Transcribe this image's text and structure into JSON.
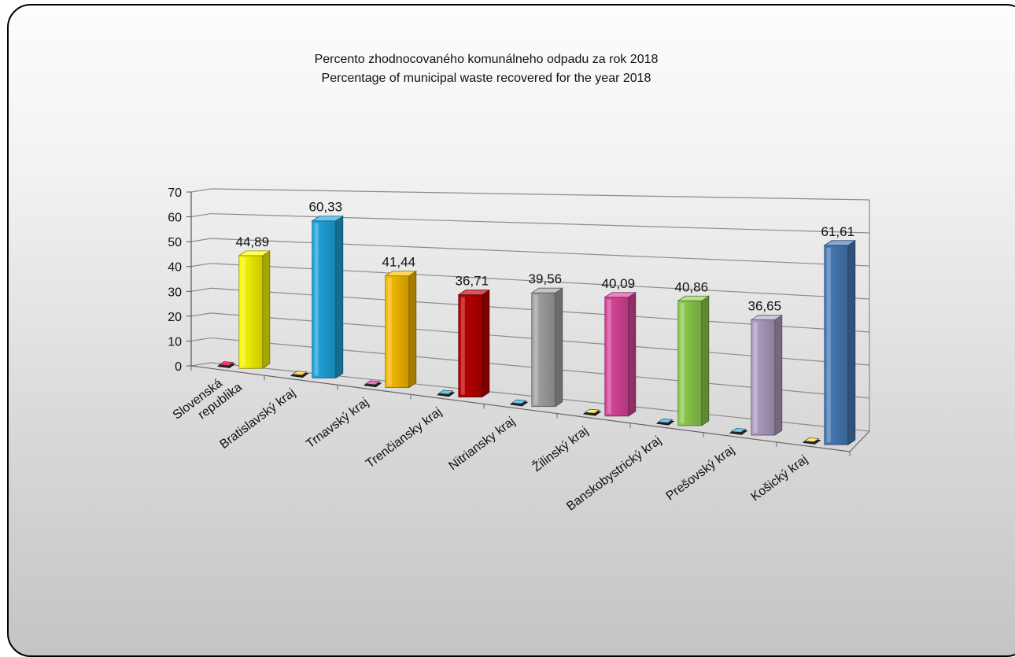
{
  "chart_data": {
    "type": "bar",
    "title_lines": [
      "Percento zhodnocovaného komunálneho odpadu za rok 2018",
      "Percentage of municipal waste recovered for the year 2018"
    ],
    "y_ticks": [
      "0",
      "10",
      "20",
      "30",
      "40",
      "50",
      "60",
      "70"
    ],
    "ylim": [
      0,
      70
    ],
    "categories": [
      {
        "lines": [
          "Slovenská",
          "republika"
        ]
      },
      {
        "lines": [
          "Bratislavský kraj"
        ]
      },
      {
        "lines": [
          "Trnavský kraj"
        ]
      },
      {
        "lines": [
          "Trenčiansky kraj"
        ]
      },
      {
        "lines": [
          "Nitriansky kraj"
        ]
      },
      {
        "lines": [
          "Žilinský kraj"
        ]
      },
      {
        "lines": [
          "Banskobystrický kraj"
        ]
      },
      {
        "lines": [
          "Prešovský kraj"
        ]
      },
      {
        "lines": [
          "Košický kraj"
        ]
      }
    ],
    "values": [
      44.89,
      60.33,
      41.44,
      36.71,
      39.56,
      40.09,
      40.86,
      36.65,
      61.61
    ],
    "value_labels": [
      "44,89",
      "60,33",
      "41,44",
      "36,71",
      "39,56",
      "40,09",
      "40,86",
      "36,65",
      "61,61"
    ],
    "colors": [
      "#ffff00",
      "#1fa9e1",
      "#ffc000",
      "#c00000",
      "#a6a6a6",
      "#e0479e",
      "#92d050",
      "#b3a2c7",
      "#4a7ebb"
    ],
    "marker_colors": [
      "#ff3366",
      "#ffe14d",
      "#ff66cc",
      "#66ccff",
      "#66ccff",
      "#ffee66",
      "#66ccff",
      "#66ccff",
      "#ffee66"
    ],
    "grid": true,
    "legend": "none"
  }
}
